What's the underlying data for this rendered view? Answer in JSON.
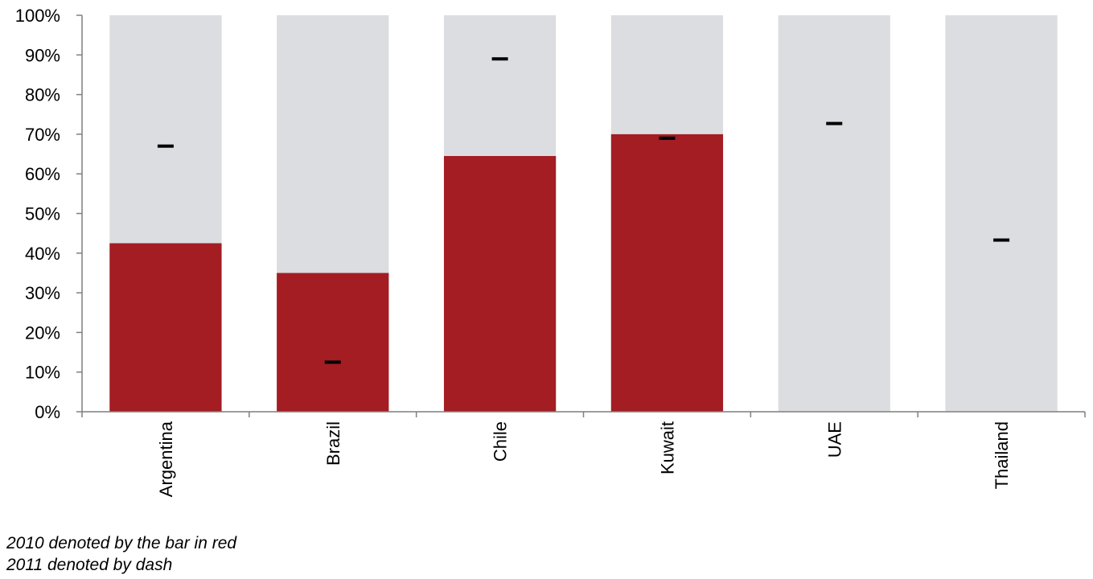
{
  "chart_data": {
    "type": "bar",
    "categories": [
      "Argentina",
      "Brazil",
      "Chile",
      "Kuwait",
      "UAE",
      "Thailand"
    ],
    "series": [
      {
        "values": [
          42.5,
          35.0,
          64.5,
          70.0,
          null,
          null
        ]
      },
      {
        "values": [
          67.0,
          12.5,
          89.0,
          69.0,
          72.7,
          43.3
        ]
      }
    ],
    "background_max": 100,
    "ylim": [
      0,
      100
    ],
    "yticks": [
      "0%",
      "10%",
      "20%",
      "30%",
      "40%",
      "50%",
      "60%",
      "70%",
      "80%",
      "90%",
      "100%"
    ],
    "grid": false,
    "colors": {
      "bar_2010": "#a31d23",
      "background_bar": "#dcdde0",
      "dash": "#000000",
      "axis": "#7f7f7f"
    }
  },
  "notes": {
    "line1": "2010 denoted by the bar in red",
    "line2": "2011 denoted by dash"
  }
}
